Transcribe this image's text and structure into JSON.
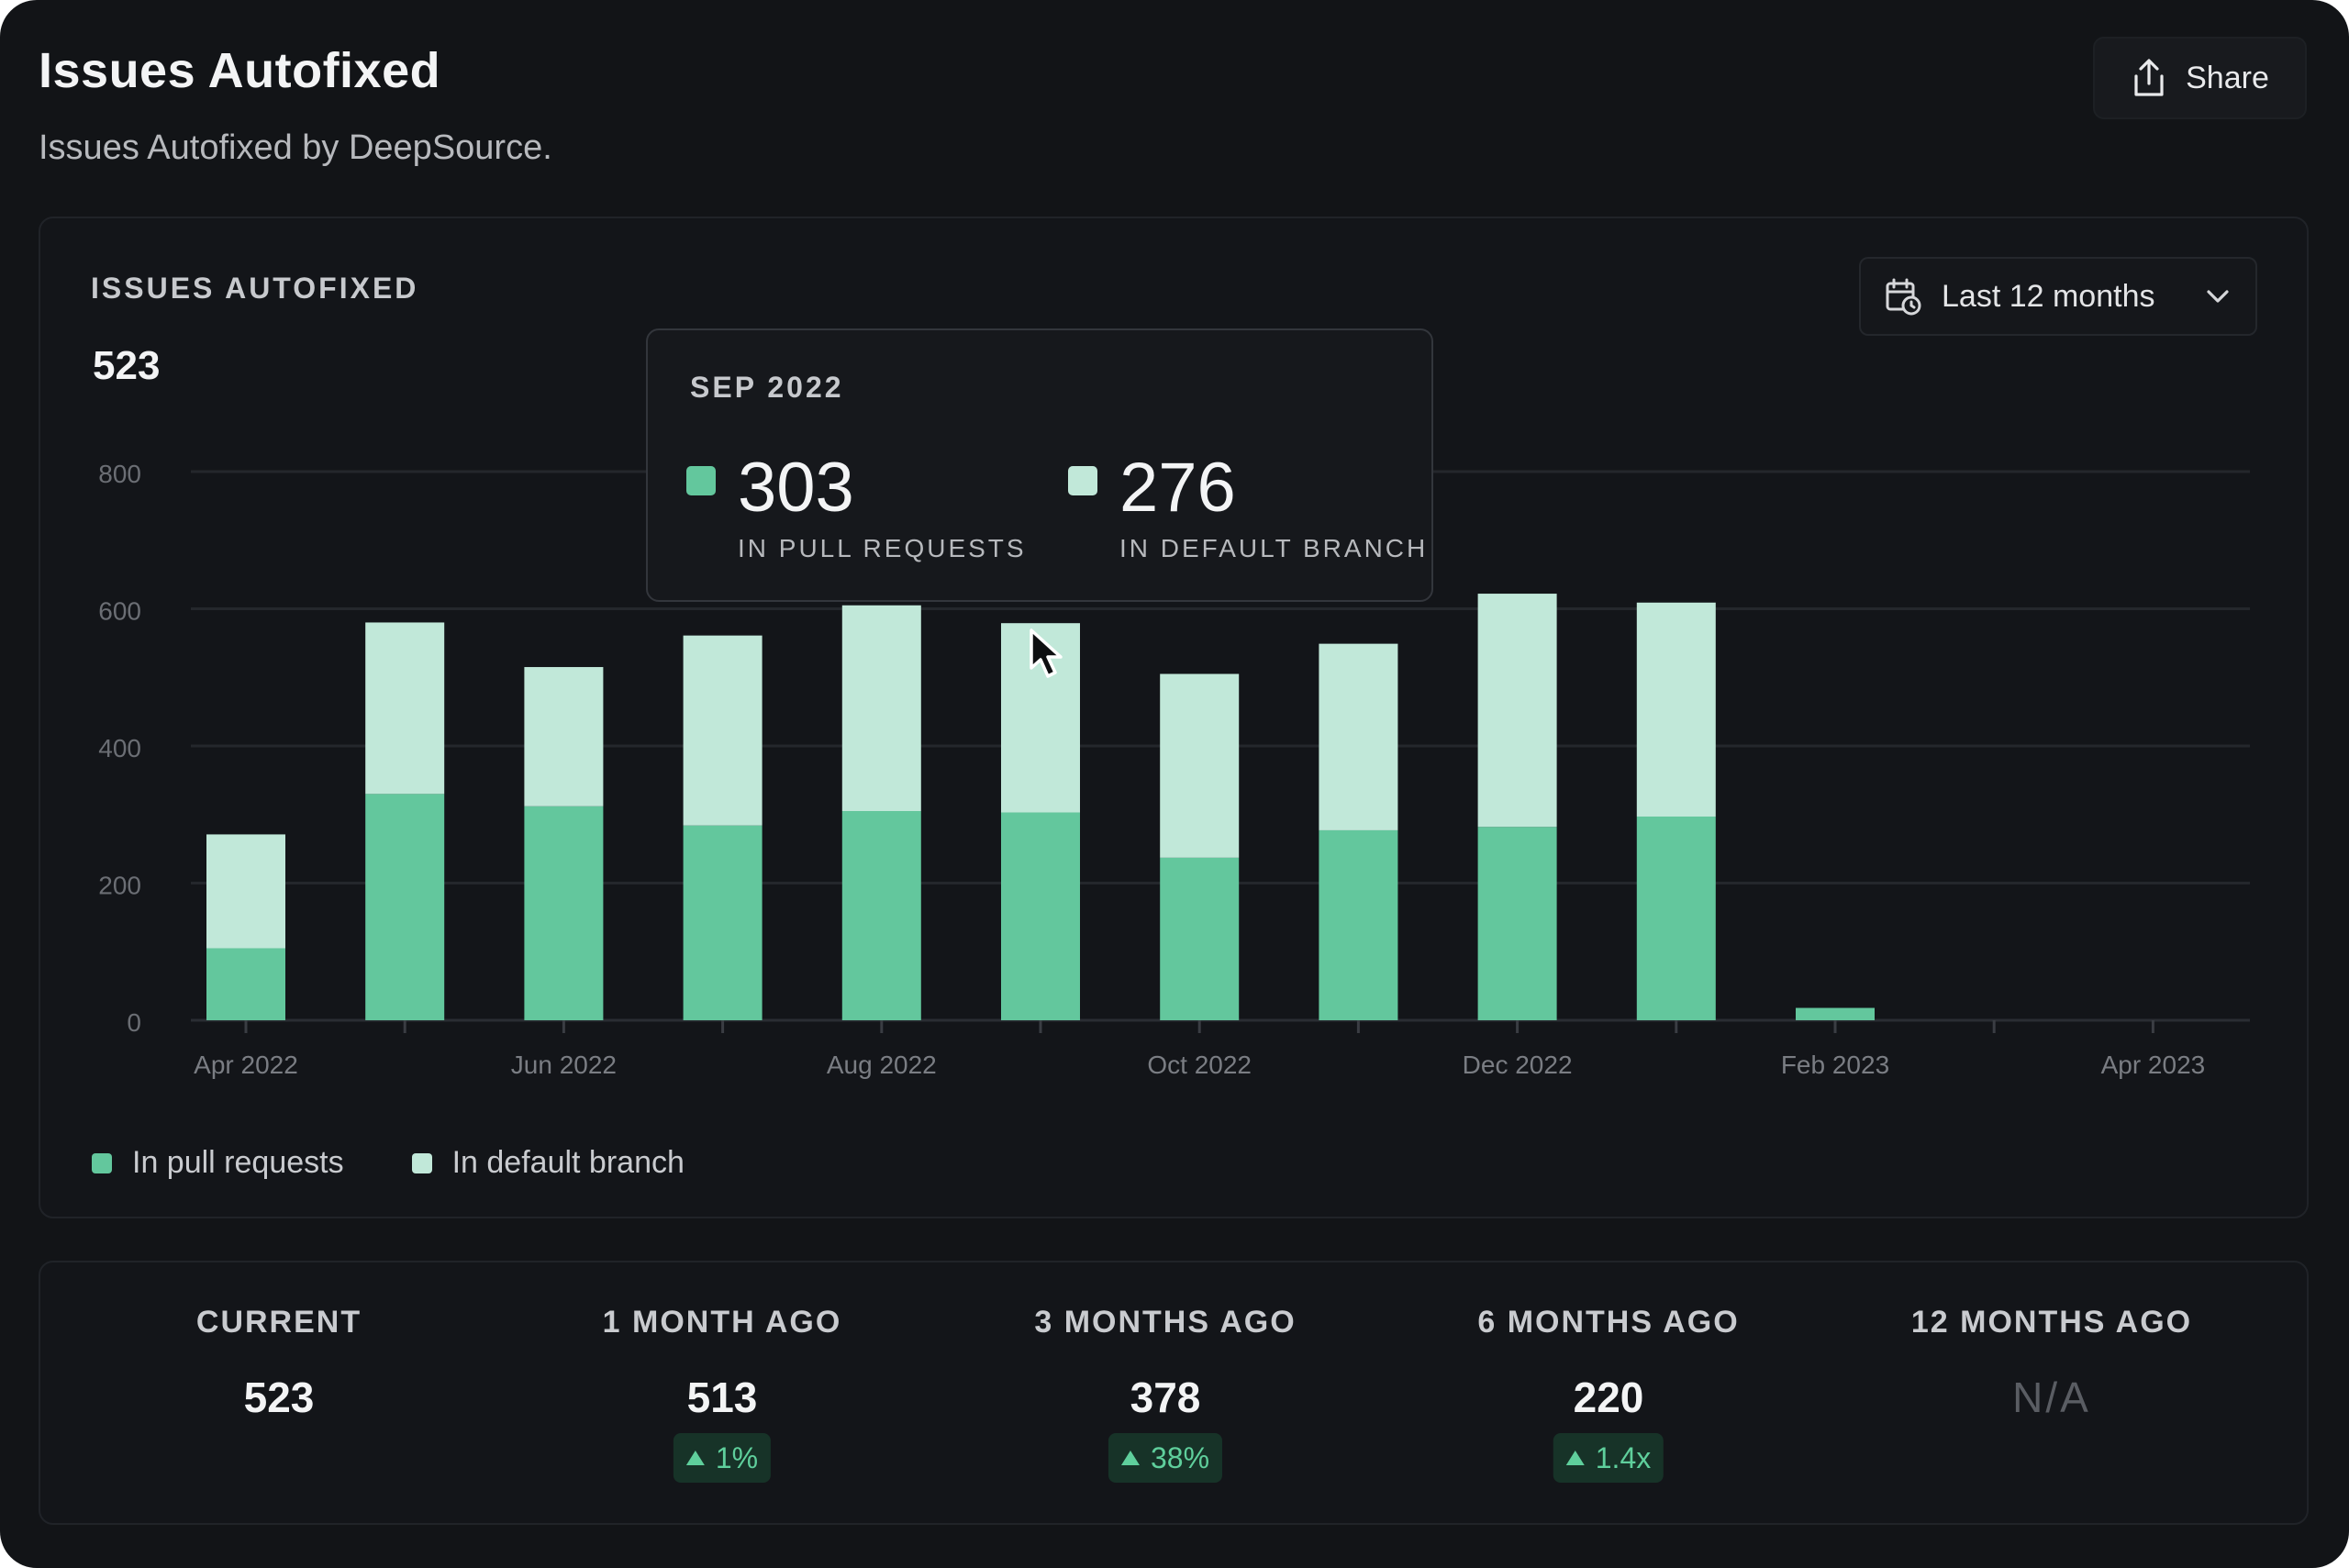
{
  "page": {
    "title": "Issues Autofixed",
    "subtitle": "Issues Autofixed by DeepSource.",
    "share_label": "Share"
  },
  "chart_card": {
    "heading": "ISSUES AUTOFIXED",
    "total": "523",
    "range_select": {
      "selected": "Last 12 months",
      "icon": "calendar-clock-icon"
    }
  },
  "tooltip": {
    "date": "SEP 2022",
    "pr_value": "303",
    "pr_caption": "IN PULL REQUESTS",
    "default_value": "276",
    "default_caption": "IN DEFAULT BRANCH"
  },
  "legend": [
    {
      "label": "In pull requests",
      "color": "#63c79d"
    },
    {
      "label": "In default branch",
      "color": "#c1e8d9"
    }
  ],
  "chart_data": {
    "type": "bar",
    "stacked": true,
    "categories": [
      "Apr 2022",
      "May 2022",
      "Jun 2022",
      "Jul 2022",
      "Aug 2022",
      "Sep 2022",
      "Oct 2022",
      "Nov 2022",
      "Dec 2022",
      "Jan 2023",
      "Feb 2023",
      "Mar 2023",
      "Apr 2023"
    ],
    "x_tick_labels": [
      "Apr 2022",
      "Jun 2022",
      "Aug 2022",
      "Oct 2022",
      "Dec 2022",
      "Feb 2023",
      "Apr 2023"
    ],
    "series": [
      {
        "name": "In pull requests",
        "color": "#63c79d",
        "values": [
          105,
          330,
          312,
          284,
          305,
          303,
          237,
          277,
          282,
          297,
          18,
          0,
          0
        ]
      },
      {
        "name": "In default branch",
        "color": "#c1e8d9",
        "values": [
          166,
          250,
          203,
          277,
          300,
          276,
          268,
          272,
          340,
          312,
          0,
          0,
          0
        ]
      }
    ],
    "y_ticks": [
      0,
      200,
      400,
      600,
      800
    ],
    "ylim": [
      0,
      800
    ],
    "grid": true,
    "legend_position": "bottom-left"
  },
  "stats": [
    {
      "label": "CURRENT",
      "value": "523",
      "change": ""
    },
    {
      "label": "1 MONTH AGO",
      "value": "513",
      "change": "1%"
    },
    {
      "label": "3 MONTHS AGO",
      "value": "378",
      "change": "38%"
    },
    {
      "label": "6 MONTHS AGO",
      "value": "220",
      "change": "1.4x"
    },
    {
      "label": "12 MONTHS AGO",
      "value": "N/A",
      "change": ""
    }
  ],
  "colors": {
    "background": "#121417",
    "accent_green": "#63c79d",
    "light_green": "#c1e8d9",
    "badge_bg": "#173328"
  }
}
